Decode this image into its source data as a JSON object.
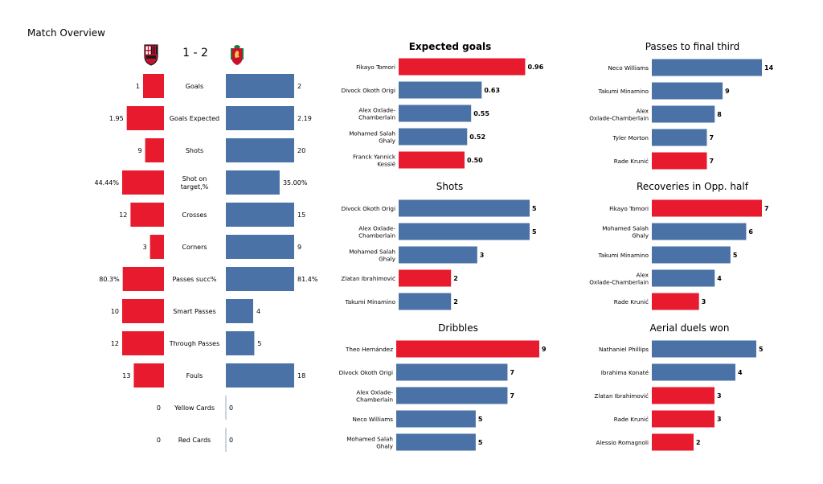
{
  "page": {
    "title": "Match Overview",
    "score": "1 - 2",
    "home_crest": "ac-milan-crest-icon",
    "away_crest": "liverpool-crest-icon"
  },
  "colors": {
    "home": "#e81b2e",
    "away": "#4a72a6",
    "axis": "#9aa8bc"
  },
  "chart_data": [
    {
      "type": "bar",
      "title": "",
      "orientation": "diverging",
      "categories": [
        "Goals",
        "Goals Expected",
        "Shots",
        "Shot on target,%",
        "Crosses",
        "Corners",
        "Passes succ%",
        "Smart Passes",
        "Through Passes",
        "Fouls",
        "Yellow Cards",
        "Red Cards"
      ],
      "series": [
        {
          "values": [
            1,
            1.95,
            9,
            44.44,
            12,
            3,
            80.3,
            10,
            12,
            13,
            0,
            0
          ],
          "labels": [
            "1",
            "1.95",
            "9",
            "44.44%",
            "12",
            "3",
            "80.3%",
            "10",
            "12",
            "13",
            "0",
            "0"
          ],
          "color": "#e81b2e"
        },
        {
          "values": [
            2,
            2.19,
            20,
            35,
            15,
            9,
            81.4,
            4,
            5,
            18,
            0,
            0
          ],
          "labels": [
            "2",
            "2.19",
            "20",
            "35.00%",
            "15",
            "9",
            "81.4%",
            "4",
            "5",
            "18",
            "0",
            "0"
          ],
          "color": "#4a72a6"
        }
      ],
      "grid": false,
      "legend": "none"
    },
    {
      "type": "bar",
      "orientation": "horizontal",
      "title": "Expected goals",
      "title_bold": true,
      "categories": [
        "Fikayo Tomori",
        "Divock Okoth Origi",
        "Alex Oxlade-\nChamberlain",
        "Mohamed  Salah\nGhaly",
        "Franck Yannick\nKessié"
      ],
      "values": [
        0.96,
        0.63,
        0.55,
        0.52,
        0.5
      ],
      "labels": [
        "0.96",
        "0.63",
        "0.55",
        "0.52",
        "0.50"
      ],
      "teams": [
        "home",
        "away",
        "away",
        "away",
        "home"
      ],
      "xlim": [
        0,
        1.0
      ]
    },
    {
      "type": "bar",
      "orientation": "horizontal",
      "title": "Passes to final third",
      "categories": [
        "Neco Williams",
        "Takumi Minamino",
        "Alex\nOxlade-Chamberlain",
        "Tyler Morton",
        "Rade Krunić"
      ],
      "values": [
        14,
        9,
        8,
        7,
        7
      ],
      "labels": [
        "14",
        "9",
        "8",
        "7",
        "7"
      ],
      "teams": [
        "away",
        "away",
        "away",
        "away",
        "home"
      ],
      "xlim": [
        0,
        14
      ]
    },
    {
      "type": "bar",
      "orientation": "horizontal",
      "title": "Shots",
      "categories": [
        "Divock Okoth Origi",
        "Alex Oxlade-\nChamberlain",
        "Mohamed  Salah\nGhaly",
        "Zlatan Ibrahimović",
        "Takumi Minamino"
      ],
      "values": [
        5,
        5,
        3,
        2,
        2
      ],
      "labels": [
        "5",
        "5",
        "3",
        "2",
        "2"
      ],
      "teams": [
        "away",
        "away",
        "away",
        "home",
        "away"
      ],
      "xlim": [
        0,
        5
      ]
    },
    {
      "type": "bar",
      "orientation": "horizontal",
      "title": "Recoveries in Opp. half",
      "categories": [
        "Fikayo Tomori",
        "Mohamed  Salah\nGhaly",
        "Takumi Minamino",
        "Alex\nOxlade-Chamberlain",
        "Rade Krunić"
      ],
      "values": [
        7,
        6,
        5,
        4,
        3
      ],
      "labels": [
        "7",
        "6",
        "5",
        "4",
        "3"
      ],
      "teams": [
        "home",
        "away",
        "away",
        "away",
        "home"
      ],
      "xlim": [
        0,
        7
      ]
    },
    {
      "type": "bar",
      "orientation": "horizontal",
      "title": "Dribbles",
      "categories": [
        "Theo Hernández",
        "Divock Okoth Origi",
        "Alex Oxlade-\nChamberlain",
        "Neco Williams",
        "Mohamed  Salah\nGhaly"
      ],
      "values": [
        9,
        7,
        7,
        5,
        5
      ],
      "labels": [
        "9",
        "7",
        "7",
        "5",
        "5"
      ],
      "teams": [
        "home",
        "away",
        "away",
        "away",
        "away"
      ],
      "xlim": [
        0,
        9
      ]
    },
    {
      "type": "bar",
      "orientation": "horizontal",
      "title": "Aerial duels won",
      "categories": [
        "Nathaniel Phillips",
        "Ibrahima Konaté",
        "Zlatan Ibrahimović",
        "Rade Krunić",
        "Alessio Romagnoli"
      ],
      "values": [
        5,
        4,
        3,
        3,
        2
      ],
      "labels": [
        "5",
        "4",
        "3",
        "3",
        "2"
      ],
      "teams": [
        "away",
        "away",
        "home",
        "home",
        "home"
      ],
      "xlim": [
        0,
        5
      ]
    }
  ]
}
